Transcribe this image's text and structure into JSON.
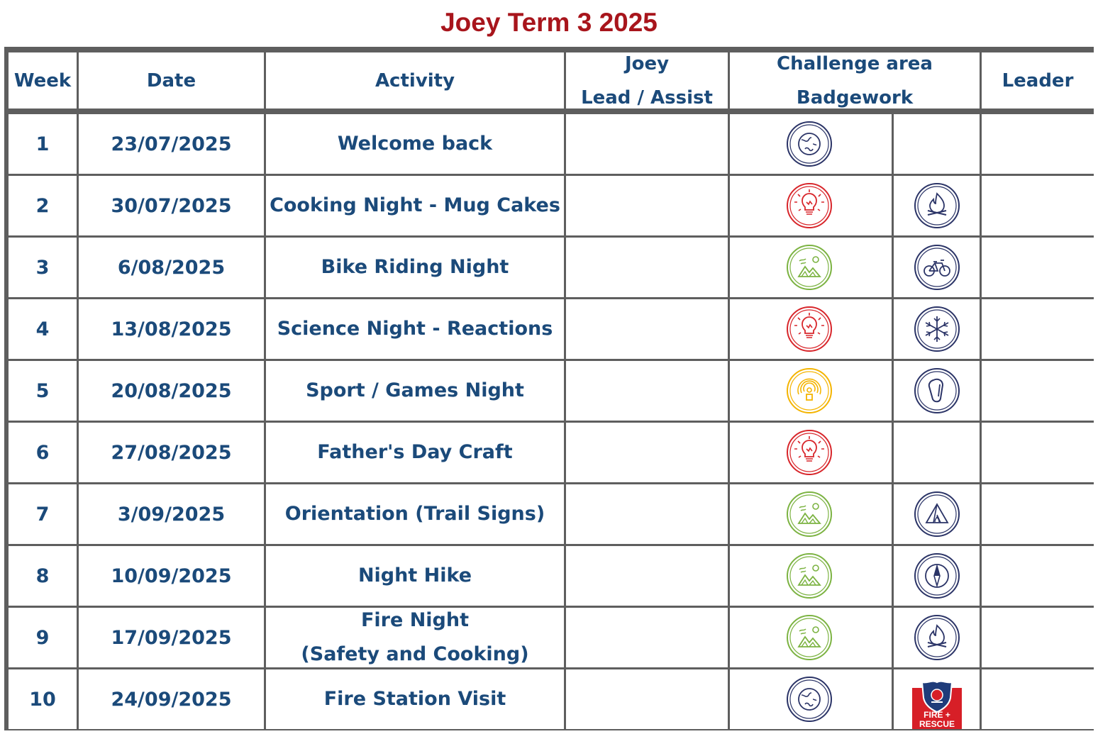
{
  "title": "Joey Term 3 2025",
  "colors": {
    "title": "#a8151c",
    "text": "#1b4a7a",
    "grid": "#5e5e5e",
    "community": "#2b3467",
    "creative": "#d8262b",
    "outdoors": "#7cb342",
    "personal_growth": "#f4b400",
    "skill_navy": "#2b3467",
    "fire_rescue": "#d71f27"
  },
  "headers": {
    "week": "Week",
    "date": "Date",
    "activity": "Activity",
    "joey_line1": "Joey",
    "joey_line2": "Lead / Assist",
    "challenge_line1": "Challenge area",
    "challenge_line2": "Badgework",
    "leader": "Leader"
  },
  "rows": [
    {
      "week": "1",
      "date": "23/07/2025",
      "activity": "Welcome back",
      "activity_line2": "",
      "challenge_icon": "community-globe-icon",
      "badge_icon": ""
    },
    {
      "week": "2",
      "date": "30/07/2025",
      "activity": "Cooking Night - Mug Cakes",
      "activity_line2": "",
      "challenge_icon": "creative-lightbulb-icon",
      "badge_icon": "campfire-icon"
    },
    {
      "week": "3",
      "date": "6/08/2025",
      "activity": "Bike Riding Night",
      "activity_line2": "",
      "challenge_icon": "outdoors-mountain-icon",
      "badge_icon": "bicycle-icon"
    },
    {
      "week": "4",
      "date": "13/08/2025",
      "activity": "Science Night - Reactions",
      "activity_line2": "",
      "challenge_icon": "creative-lightbulb-icon",
      "badge_icon": "snowflake-icon"
    },
    {
      "week": "5",
      "date": "20/08/2025",
      "activity": "Sport / Games Night",
      "activity_line2": "",
      "challenge_icon": "personal-growth-icon",
      "badge_icon": "carabiner-icon"
    },
    {
      "week": "6",
      "date": "27/08/2025",
      "activity": "Father's Day Craft",
      "activity_line2": "",
      "challenge_icon": "creative-lightbulb-icon",
      "badge_icon": ""
    },
    {
      "week": "7",
      "date": "3/09/2025",
      "activity": "Orientation (Trail Signs)",
      "activity_line2": "",
      "challenge_icon": "outdoors-mountain-icon",
      "badge_icon": "tent-icon"
    },
    {
      "week": "8",
      "date": "10/09/2025",
      "activity": "Night Hike",
      "activity_line2": "",
      "challenge_icon": "outdoors-mountain-icon",
      "badge_icon": "compass-icon"
    },
    {
      "week": "9",
      "date": "17/09/2025",
      "activity": "Fire Night",
      "activity_line2": "(Safety and Cooking)",
      "challenge_icon": "outdoors-mountain-icon",
      "badge_icon": "campfire-icon"
    },
    {
      "week": "10",
      "date": "24/09/2025",
      "activity": "Fire Station Visit",
      "activity_line2": "",
      "challenge_icon": "community-globe-icon",
      "badge_icon": "fire-rescue-logo"
    }
  ],
  "fire_rescue_logo_text": [
    "FIRE +",
    "RESCUE"
  ]
}
